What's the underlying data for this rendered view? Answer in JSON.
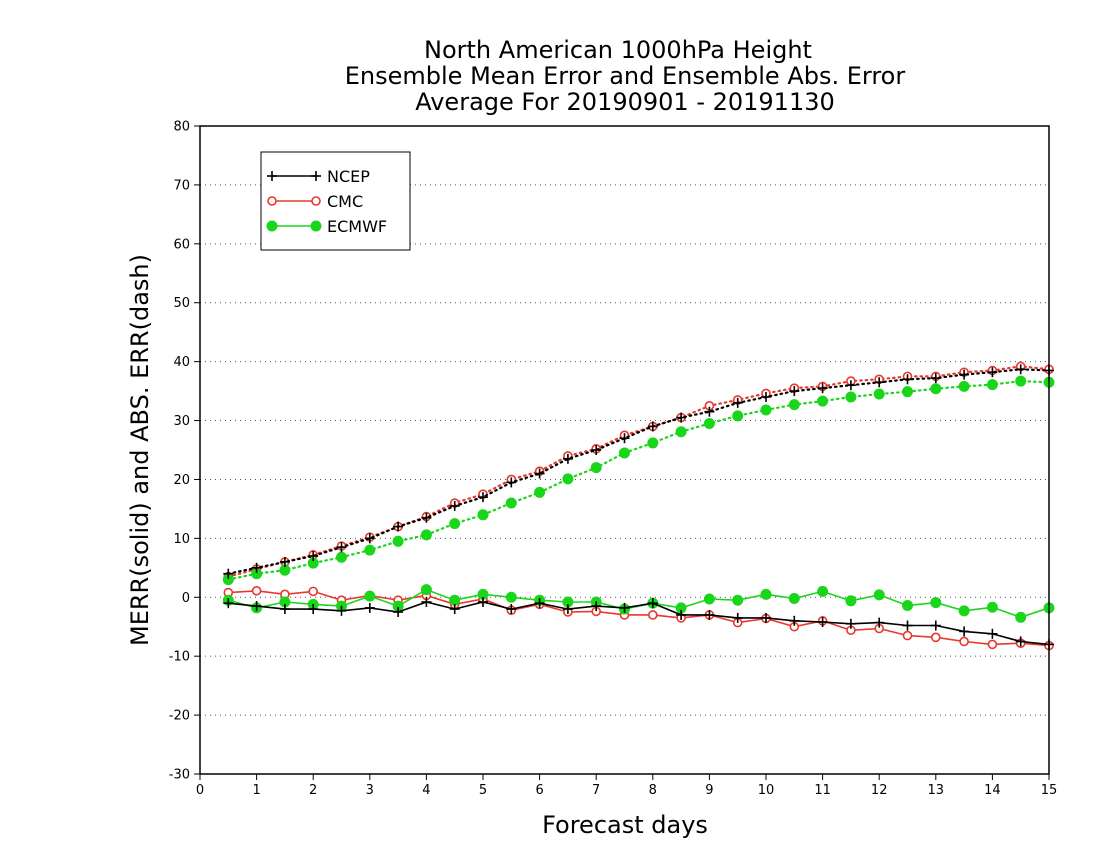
{
  "chart_data": {
    "type": "line",
    "title_lines": [
      "North American 1000hPa Height",
      "Ensemble Mean Error and Ensemble Abs. Error",
      "Average For 20190901 - 20191130"
    ],
    "xlabel": "Forecast days",
    "ylabel": "MERR(solid) and ABS. ERR(dash)",
    "xlim": [
      0,
      15
    ],
    "ylim": [
      -30,
      80
    ],
    "xticks": [
      "0",
      "1",
      "2",
      "3",
      "4",
      "5",
      "6",
      "7",
      "8",
      "9",
      "10",
      "11",
      "12",
      "13",
      "14",
      "15"
    ],
    "yticks": [
      "80",
      "70",
      "60",
      "50",
      "40",
      "30",
      "20",
      "10",
      "0",
      "-10",
      "-20",
      "-30"
    ],
    "grid": true,
    "legend_position": "top-left",
    "x": [
      0.5,
      1,
      1.5,
      2,
      2.5,
      3,
      3.5,
      4,
      4.5,
      5,
      5.5,
      6,
      6.5,
      7,
      7.5,
      8,
      8.5,
      9,
      9.5,
      10,
      10.5,
      11,
      11.5,
      12,
      12.5,
      13,
      13.5,
      14,
      14.5,
      15
    ],
    "series": [
      {
        "name": "NCEP",
        "color": "#000000",
        "marker": "plus",
        "merr": [
          -1,
          -1.5,
          -2,
          -2,
          -2.3,
          -1.8,
          -2.5,
          -0.8,
          -2,
          -0.8,
          -2,
          -1,
          -2,
          -1.5,
          -1.8,
          -1,
          -3,
          -3,
          -3.5,
          -3.5,
          -4,
          -4.2,
          -4.5,
          -4.3,
          -4.8,
          -4.8,
          -5.8,
          -6.2,
          -7.5,
          -8
        ],
        "abs_err": [
          4,
          5,
          6,
          7,
          8.5,
          10,
          12,
          13.5,
          15.5,
          17,
          19.5,
          21,
          23.5,
          25,
          27,
          29,
          30.5,
          31.5,
          33,
          34,
          35,
          35.5,
          36,
          36.5,
          37,
          37.2,
          37.8,
          38.2,
          38.7,
          38.5
        ]
      },
      {
        "name": "CMC",
        "color": "#e8382e",
        "marker": "open-circle",
        "merr": [
          0.8,
          1.1,
          0.5,
          1,
          -0.5,
          0.3,
          -0.5,
          0.3,
          -1.2,
          -0.3,
          -2.2,
          -1.2,
          -2.5,
          -2.4,
          -3,
          -3,
          -3.5,
          -3,
          -4.3,
          -3.6,
          -5,
          -4,
          -5.6,
          -5.3,
          -6.5,
          -6.8,
          -7.5,
          -8,
          -7.8,
          -8.2
        ],
        "abs_err": [
          3.5,
          4.8,
          6,
          7.2,
          8.7,
          10.2,
          12,
          13.7,
          16,
          17.5,
          20,
          21.4,
          24,
          25.2,
          27.5,
          29,
          30.5,
          32.5,
          33.5,
          34.6,
          35.5,
          35.8,
          36.7,
          37,
          37.5,
          37.5,
          38.2,
          38.5,
          39.2,
          38.7
        ]
      },
      {
        "name": "ECMWF",
        "color": "#1ad61a",
        "marker": "filled-circle",
        "merr": [
          -0.5,
          -1.8,
          -0.8,
          -1.2,
          -1.5,
          0.2,
          -1.5,
          1.3,
          -0.5,
          0.5,
          0,
          -0.5,
          -0.8,
          -0.8,
          -2,
          -1,
          -1.8,
          -0.3,
          -0.5,
          0.5,
          -0.2,
          1,
          -0.6,
          0.4,
          -1.4,
          -0.9,
          -2.3,
          -1.7,
          -3.4,
          -1.8
        ],
        "abs_err": [
          3,
          4,
          4.6,
          5.8,
          6.8,
          8,
          9.5,
          10.6,
          12.5,
          14,
          16,
          17.8,
          20.1,
          22,
          24.5,
          26.2,
          28.1,
          29.5,
          30.8,
          31.8,
          32.7,
          33.3,
          34,
          34.5,
          34.9,
          35.4,
          35.8,
          36.1,
          36.7,
          36.5
        ]
      }
    ]
  }
}
